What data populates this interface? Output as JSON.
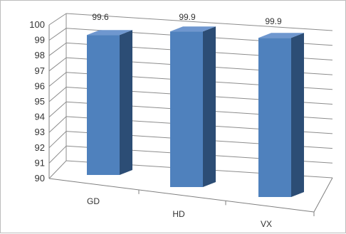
{
  "chart_data": {
    "type": "bar",
    "style": "3d-column",
    "categories": [
      "GD",
      "HD",
      "VX"
    ],
    "values": [
      99.6,
      99.9,
      99.9
    ],
    "data_labels": [
      "99.6",
      "99.9",
      "99.9"
    ],
    "y_ticks": [
      "90",
      "91",
      "92",
      "93",
      "94",
      "95",
      "96",
      "97",
      "98",
      "99",
      "100"
    ],
    "ylim": [
      90,
      100
    ],
    "grid": true,
    "legend": false,
    "colors": {
      "bar_front": "#4f81bd",
      "bar_side": "#2c4d75",
      "bar_top": "#6f97cf",
      "grid": "#8c8c8c",
      "axis": "#7f7f7f"
    }
  }
}
